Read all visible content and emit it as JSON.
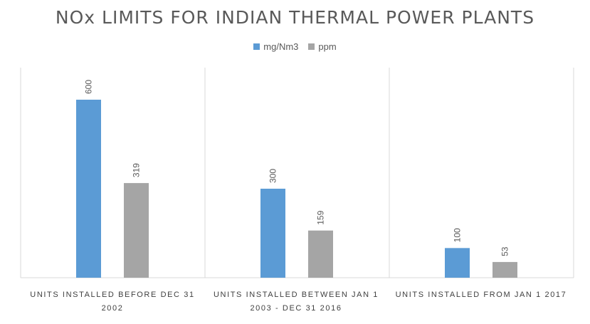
{
  "chart_data": {
    "type": "bar",
    "title": "NOx LIMITS FOR INDIAN THERMAL POWER PLANTS",
    "categories": [
      "UNITS INSTALLED BEFORE DEC 31 2002",
      "UNITS INSTALLED BETWEEN JAN 1 2003 - DEC 31 2016",
      "UNITS INSTALLED FROM JAN 1 2017"
    ],
    "category_lines": [
      [
        "UNITS INSTALLED BEFORE DEC 31",
        "2002"
      ],
      [
        "UNITS INSTALLED BETWEEN JAN 1",
        "2003 - DEC 31 2016"
      ],
      [
        "UNITS INSTALLED FROM JAN 1 2017"
      ]
    ],
    "series": [
      {
        "name": "mg/Nm3",
        "values": [
          600,
          300,
          100
        ],
        "color": "#5B9BD5"
      },
      {
        "name": "ppm",
        "values": [
          319,
          159,
          53
        ],
        "color": "#A5A5A5"
      }
    ],
    "ylim": [
      0,
      600
    ],
    "xlabel": "",
    "ylabel": "",
    "legend_position": "top",
    "data_labels": true,
    "gridlines": false
  }
}
